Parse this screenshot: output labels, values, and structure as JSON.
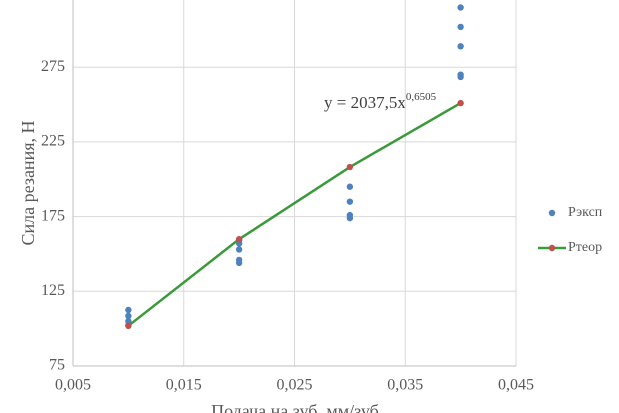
{
  "chart_data": {
    "type": "scatter",
    "x_label": "Подача на зуб, мм/зуб",
    "y_label": "Сила резания, Н",
    "annotation": {
      "base": "y = 2037,5x",
      "exponent": "0,6505"
    },
    "xlim": [
      0.005,
      0.045
    ],
    "xticks": [
      {
        "value": 0.005,
        "label": "0,005"
      },
      {
        "value": 0.015,
        "label": "0,015"
      },
      {
        "value": 0.025,
        "label": "0,025"
      },
      {
        "value": 0.035,
        "label": "0,035"
      },
      {
        "value": 0.045,
        "label": "0,045"
      }
    ],
    "ylim": [
      75,
      320
    ],
    "yticks": [
      75,
      125,
      175,
      225,
      275
    ],
    "grid": true,
    "legend": "right",
    "series": [
      {
        "name": "Рэксп",
        "color": "#4f81bd",
        "mode": "markers",
        "x": [
          0.01,
          0.01,
          0.01,
          0.01,
          0.02,
          0.02,
          0.02,
          0.02,
          0.02,
          0.03,
          0.03,
          0.03,
          0.03,
          0.04,
          0.04,
          0.04,
          0.04,
          0.04
        ],
        "values": [
          112.5,
          108.5,
          105,
          102.5,
          159,
          157,
          153,
          146,
          144,
          195,
          185,
          176,
          174,
          315,
          302,
          289,
          270,
          268.5
        ]
      },
      {
        "name": "Ртеор",
        "color": "#3a9a3a",
        "marker_color": "#c0504d",
        "mode": "lines+markers",
        "x": [
          0.01,
          0.02,
          0.03,
          0.04
        ],
        "values": [
          101.9,
          159.9,
          208.2,
          251.0
        ]
      }
    ]
  }
}
